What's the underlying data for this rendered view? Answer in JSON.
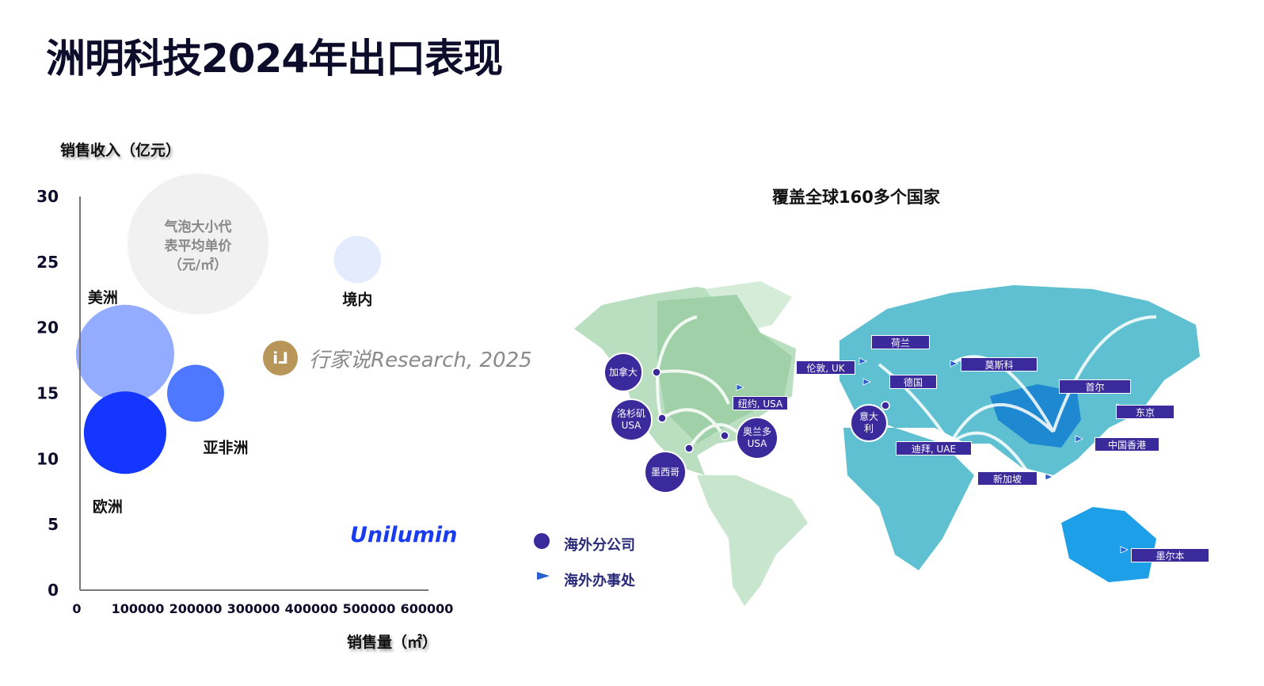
{
  "title": "洲明科技2024年出口表现",
  "chart_data": {
    "type": "bubble",
    "ylabel": "销售收入（亿元）",
    "xlabel": "销售量（㎡）",
    "xlim": [
      0,
      600000
    ],
    "ylim": [
      0,
      30
    ],
    "x_ticks": [
      "0",
      "100000",
      "200000",
      "300000",
      "400000",
      "500000",
      "600000"
    ],
    "y_ticks": [
      "0",
      "5",
      "10",
      "15",
      "20",
      "25",
      "30"
    ],
    "size_legend": "气泡大小代表平均单价（元/㎡）",
    "size_legend_lines": [
      "气泡大小代",
      "表平均单价",
      "（元/㎡）"
    ],
    "points": [
      {
        "label": "美洲",
        "x": 78000,
        "y": 18,
        "size_relative": 1.0,
        "color": "#94acff"
      },
      {
        "label": "欧洲",
        "x": 78000,
        "y": 12,
        "size_relative": 0.84,
        "color": "#1436ff"
      },
      {
        "label": "亚非洲",
        "x": 200000,
        "y": 15,
        "size_relative": 0.58,
        "color": "#4d78ff"
      },
      {
        "label": "境内",
        "x": 480000,
        "y": 25.2,
        "size_relative": 0.48,
        "color": "#e4ebfc"
      }
    ]
  },
  "watermark": {
    "logo": "i'J",
    "text": "行家说Research, 2025"
  },
  "brand": "Unilumin",
  "map": {
    "title": "覆盖全球160多个国家",
    "subsidiaries": [
      "加拿大",
      "洛杉矶\nUSA",
      "墨西哥",
      "奥兰多\nUSA",
      "意大\n利"
    ],
    "offices": [
      "纽约, USA",
      "伦敦, UK",
      "荷兰",
      "德国",
      "莫斯科",
      "迪拜, UAE",
      "新加坡",
      "首尔",
      "东京",
      "中国香港",
      "墨尔本"
    ],
    "legend": {
      "subsidiary": "海外分公司",
      "office": "海外办事处"
    },
    "colors": {
      "marker": "#3a2a9c",
      "americas": "#a8d5b0",
      "eurasia": "#5ec0d0",
      "china": "#1e88d0",
      "australia": "#1ea0e8"
    }
  }
}
